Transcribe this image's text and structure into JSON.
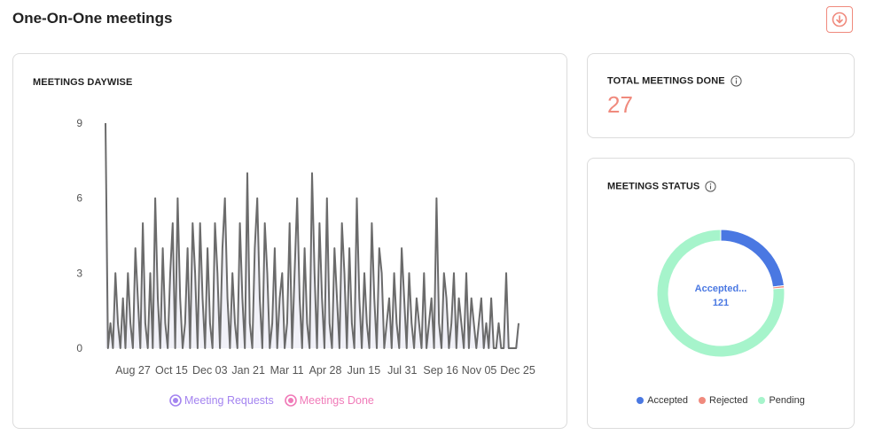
{
  "page": {
    "title": "One-On-One meetings"
  },
  "colors": {
    "accent": "#f08a7d",
    "chart_line": "#6b6b6b",
    "meeting_requests": "#a484f0",
    "meetings_done": "#f07ab8",
    "accepted": "#4a78e2",
    "rejected": "#f08a7d",
    "pending": "#a6f4cb"
  },
  "icons": {
    "download": "download-circle-icon",
    "info": "info-circle-icon"
  },
  "daywise": {
    "title": "MEETINGS DAYWISE",
    "legend": {
      "requests": "Meeting Requests",
      "done": "Meetings Done"
    }
  },
  "total": {
    "title": "TOTAL MEETINGS DONE",
    "value": "27"
  },
  "status": {
    "title": "MEETINGS STATUS",
    "center_label": "Accepted...",
    "center_value": "121",
    "legend": {
      "accepted": "Accepted",
      "rejected": "Rejected",
      "pending": "Pending"
    }
  },
  "chart_data": [
    {
      "type": "line",
      "title": "MEETINGS DAYWISE",
      "ylim": [
        0,
        9
      ],
      "y_ticks": [
        0,
        3,
        6,
        9
      ],
      "x_tick_labels": [
        "Aug 27",
        "Oct 15",
        "Dec 03",
        "Jan 21",
        "Mar 11",
        "Apr 28",
        "Jun 15",
        "Jul 31",
        "Sep 16",
        "Nov 05",
        "Dec 25"
      ],
      "grid": false,
      "legend_placement": "bottom",
      "series": [
        {
          "name": "Meeting Requests",
          "values": [
            9,
            0,
            1,
            0,
            3,
            1,
            0,
            2,
            0,
            3,
            1,
            0,
            4,
            2,
            0,
            5,
            1,
            0,
            3,
            0,
            6,
            2,
            0,
            4,
            1,
            0,
            3,
            5,
            0,
            6,
            2,
            0,
            1,
            4,
            0,
            5,
            3,
            0,
            5,
            2,
            0,
            4,
            1,
            0,
            5,
            3,
            0,
            4,
            6,
            2,
            0,
            3,
            1,
            0,
            5,
            2,
            0,
            7,
            1,
            0,
            4,
            6,
            2,
            0,
            5,
            3,
            0,
            1,
            4,
            0,
            2,
            3,
            0,
            1,
            5,
            0,
            3,
            6,
            2,
            0,
            4,
            1,
            0,
            7,
            3,
            0,
            5,
            2,
            0,
            6,
            1,
            0,
            4,
            2,
            0,
            5,
            3,
            0,
            4,
            1,
            0,
            6,
            2,
            0,
            3,
            1,
            0,
            5,
            2,
            0,
            4,
            3,
            0,
            1,
            2,
            0,
            3,
            1,
            0,
            4,
            2,
            0,
            3,
            1,
            0,
            2,
            1,
            0,
            3,
            0,
            1,
            2,
            0,
            6,
            1,
            0,
            3,
            2,
            0,
            1,
            3,
            0,
            2,
            1,
            0,
            3,
            0,
            2,
            1,
            0,
            1,
            2,
            0,
            1,
            0,
            2,
            0,
            0,
            1,
            0,
            0,
            3,
            0,
            0,
            0,
            0,
            1
          ]
        },
        {
          "name": "Meetings Done",
          "values": []
        }
      ]
    },
    {
      "type": "pie",
      "title": "MEETINGS STATUS",
      "categories": [
        "Accepted",
        "Rejected",
        "Pending"
      ],
      "values": [
        121,
        3,
        400
      ]
    }
  ]
}
